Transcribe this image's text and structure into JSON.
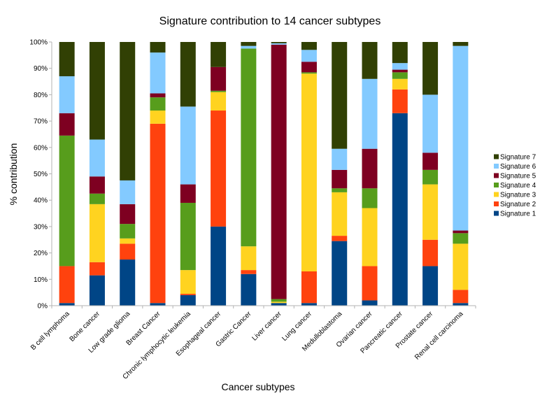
{
  "chart_data": {
    "type": "bar",
    "stacked": true,
    "title": "Signature contribution to 14 cancer subtypes",
    "xlabel": "Cancer subtypes",
    "ylabel": "% contribution",
    "ylim": [
      0,
      100
    ],
    "yticks": [
      "0%",
      "10%",
      "20%",
      "30%",
      "40%",
      "50%",
      "60%",
      "70%",
      "80%",
      "90%",
      "100%"
    ],
    "grid": false,
    "legend_position": "right",
    "categories": [
      "B cell lymphoma",
      "Bone cancer",
      "Low grade glioma",
      "Breast Cancer",
      "Chronic lymphocytic leukemia",
      "Esophageal cancer",
      "Gastric Cancer",
      "Liver cancer",
      "Lung cancer",
      "Medulloblastoma",
      "Ovarian cancer",
      "Pancreatic cancer",
      "Prostate cancer",
      "Renal cell carcinoma"
    ],
    "series": [
      {
        "name": "Signature 1",
        "color": "#004586",
        "values": [
          1,
          11.5,
          17.5,
          1,
          4,
          30,
          12,
          1,
          1,
          24.5,
          2,
          73,
          15,
          1
        ]
      },
      {
        "name": "Signature 2",
        "color": "#ff420e",
        "values": [
          14,
          5,
          6,
          68,
          0.5,
          44,
          1.5,
          0,
          12,
          2,
          13,
          9,
          10,
          5
        ]
      },
      {
        "name": "Signature 3",
        "color": "#ffd320",
        "values": [
          0,
          22,
          2,
          5,
          9,
          7,
          9,
          0.5,
          75,
          16.5,
          22,
          4,
          21,
          17.5
        ]
      },
      {
        "name": "Signature 4",
        "color": "#579d1c",
        "values": [
          49.5,
          4,
          5.5,
          5,
          25.5,
          0.5,
          75,
          1,
          0.5,
          1.5,
          7.5,
          2.5,
          5.5,
          4
        ]
      },
      {
        "name": "Signature 5",
        "color": "#7e0021",
        "values": [
          8.5,
          6.5,
          7.5,
          1.5,
          7,
          9,
          0,
          96.5,
          4,
          7,
          15,
          1,
          6.5,
          1
        ]
      },
      {
        "name": "Signature 6",
        "color": "#83caff",
        "values": [
          14,
          14,
          9,
          15.5,
          29.5,
          0,
          1,
          0.5,
          4.5,
          8,
          26.5,
          2.5,
          22,
          70
        ]
      },
      {
        "name": "Signature 7",
        "color": "#314004",
        "values": [
          13,
          37,
          52.5,
          4,
          24.5,
          9.5,
          1.5,
          0.5,
          3,
          40.5,
          14,
          8,
          20,
          1.5
        ]
      }
    ]
  }
}
